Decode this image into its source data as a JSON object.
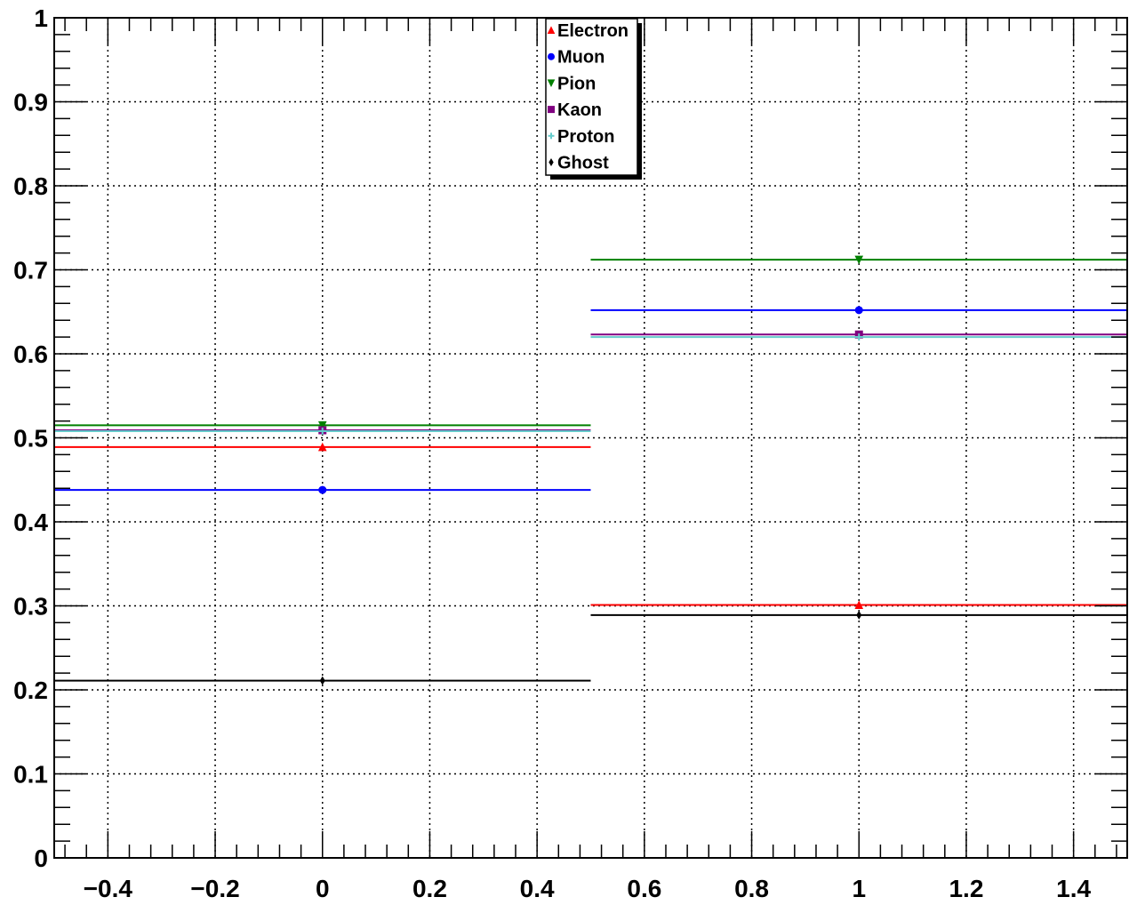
{
  "chart_data": {
    "type": "scatter",
    "title": "",
    "xlabel": "",
    "ylabel": "",
    "xlim": [
      -0.5,
      1.5
    ],
    "ylim": [
      0,
      1
    ],
    "x_ticks": [
      -0.4,
      -0.2,
      0,
      0.2,
      0.4,
      0.6,
      0.8,
      1,
      1.2,
      1.4
    ],
    "x_tick_labels": [
      "−0.4",
      "−0.2",
      "0",
      "0.2",
      "0.4",
      "0.6",
      "0.8",
      "1",
      "1.2",
      "1.4"
    ],
    "y_ticks": [
      0,
      0.1,
      0.2,
      0.3,
      0.4,
      0.5,
      0.6,
      0.7,
      0.8,
      0.9,
      1
    ],
    "y_tick_labels": [
      "0",
      "0.1",
      "0.2",
      "0.3",
      "0.4",
      "0.5",
      "0.6",
      "0.7",
      "0.8",
      "0.9",
      "1"
    ],
    "grid": true,
    "legend_position": "top-center",
    "bins": [
      [
        -0.5,
        0.5
      ],
      [
        0.5,
        1.5
      ]
    ],
    "x": [
      0,
      1
    ],
    "series": [
      {
        "name": "Electron",
        "color": "#ff0000",
        "marker": "triangle-up",
        "values": [
          0.489,
          0.301
        ]
      },
      {
        "name": "Muon",
        "color": "#0000ff",
        "marker": "circle",
        "values": [
          0.438,
          0.652
        ]
      },
      {
        "name": "Pion",
        "color": "#008000",
        "marker": "triangle-down",
        "values": [
          0.515,
          0.712
        ]
      },
      {
        "name": "Kaon",
        "color": "#800080",
        "marker": "square",
        "values": [
          0.509,
          0.623
        ]
      },
      {
        "name": "Proton",
        "color": "#66cccc",
        "marker": "cross",
        "values": [
          0.508,
          0.62
        ]
      },
      {
        "name": "Ghost",
        "color": "#000000",
        "marker": "diamond",
        "values": [
          0.211,
          0.289
        ]
      }
    ]
  }
}
